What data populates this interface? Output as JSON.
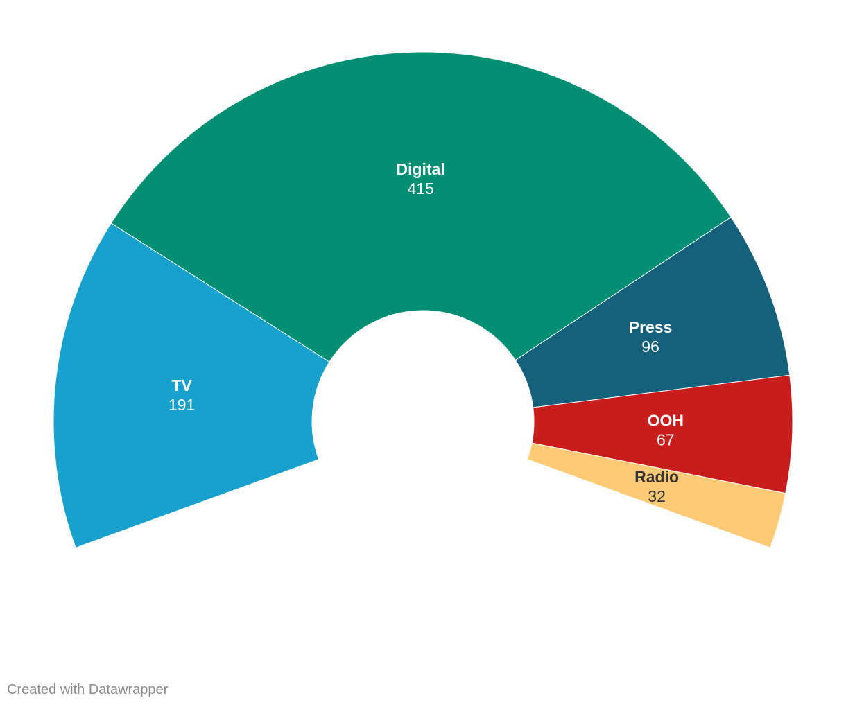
{
  "chart_data": {
    "type": "pie",
    "subtype": "arc",
    "start_angle_deg": -110,
    "end_angle_deg": 110,
    "categories": [
      "TV",
      "Digital",
      "Press",
      "OOH",
      "Radio"
    ],
    "values": [
      191,
      415,
      96,
      67,
      32
    ],
    "colors": [
      "#18a1cd",
      "#008f73",
      "#15607a",
      "#c71e1d",
      "#ffca76"
    ],
    "label_colors": [
      "#ffffff",
      "#ffffff",
      "#ffffff",
      "#ffffff",
      "#333333"
    ],
    "title": "",
    "legend": "none"
  },
  "footer": {
    "credit": "Created with Datawrapper"
  }
}
